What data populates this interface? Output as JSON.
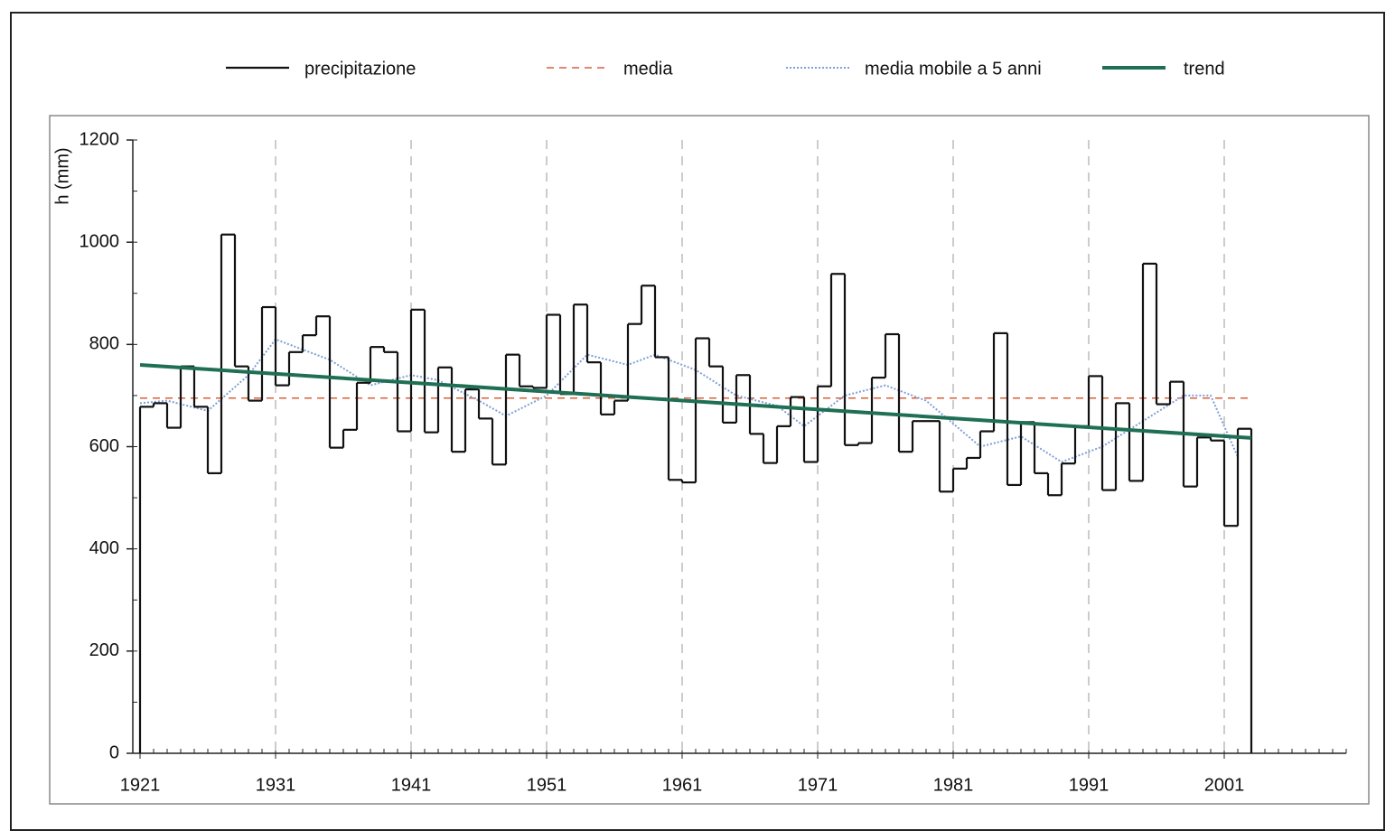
{
  "chart_data": {
    "type": "step-line",
    "y_label": "h (mm)",
    "xlim": [
      1921,
      2010
    ],
    "ylim": [
      0,
      1200
    ],
    "xticks": [
      1921,
      1931,
      1941,
      1951,
      1961,
      1971,
      1981,
      1991,
      2001
    ],
    "yticks": [
      0,
      200,
      400,
      600,
      800,
      1000,
      1200
    ],
    "x_grid": true,
    "series": [
      {
        "name": "precipitazione",
        "color": "#111111",
        "style": "step",
        "x": [
          1921,
          1922,
          1923,
          1924,
          1925,
          1926,
          1927,
          1928,
          1929,
          1930,
          1931,
          1932,
          1933,
          1934,
          1935,
          1936,
          1937,
          1938,
          1939,
          1940,
          1941,
          1942,
          1943,
          1944,
          1945,
          1946,
          1947,
          1948,
          1949,
          1950,
          1951,
          1952,
          1953,
          1954,
          1955,
          1956,
          1957,
          1958,
          1959,
          1960,
          1961,
          1962,
          1963,
          1964,
          1965,
          1966,
          1967,
          1968,
          1969,
          1970,
          1971,
          1972,
          1973,
          1974,
          1975,
          1976,
          1977,
          1978,
          1979,
          1980,
          1981,
          1982,
          1983,
          1984,
          1985,
          1986,
          1987,
          1988,
          1989,
          1990,
          1991,
          1992,
          1993,
          1994,
          1995,
          1996,
          1997,
          1998,
          1999,
          2000,
          2001,
          2002
        ],
        "values": [
          678,
          685,
          637,
          757,
          678,
          548,
          1015,
          757,
          690,
          873,
          720,
          785,
          818,
          855,
          598,
          633,
          725,
          795,
          785,
          630,
          868,
          628,
          755,
          590,
          712,
          655,
          565,
          780,
          718,
          715,
          858,
          703,
          878,
          765,
          663,
          690,
          840,
          915,
          775,
          535,
          530,
          812,
          757,
          647,
          740,
          625,
          568,
          640,
          697,
          570,
          718,
          938,
          603,
          607,
          735,
          820,
          590,
          650,
          650,
          512,
          557,
          578,
          630,
          822,
          525,
          648,
          548,
          505,
          567,
          640,
          738,
          515,
          685,
          533,
          958,
          683,
          727,
          522,
          618,
          612,
          445,
          635
        ]
      },
      {
        "name": "media",
        "color": "#d9603b",
        "style": "dash",
        "x": [
          1921,
          2003
        ],
        "values": [
          695,
          695
        ]
      },
      {
        "name": "media mobile a 5 anni",
        "color": "#7f9fd6",
        "style": "dot",
        "x": [
          1921,
          1923,
          1926,
          1929,
          1931,
          1935,
          1938,
          1941,
          1943,
          1946,
          1948,
          1951,
          1954,
          1957,
          1959,
          1962,
          1965,
          1968,
          1970,
          1973,
          1976,
          1979,
          1983,
          1986,
          1989,
          1992,
          1995,
          1998,
          2000,
          2002
        ],
        "values": [
          685,
          690,
          670,
          740,
          810,
          770,
          720,
          740,
          730,
          690,
          660,
          700,
          780,
          760,
          780,
          750,
          700,
          680,
          640,
          700,
          720,
          690,
          600,
          620,
          570,
          600,
          650,
          700,
          700,
          580
        ]
      },
      {
        "name": "trend",
        "color": "#1f6f54",
        "style": "thick",
        "x": [
          1921,
          2003
        ],
        "values": [
          760,
          617
        ]
      }
    ]
  }
}
